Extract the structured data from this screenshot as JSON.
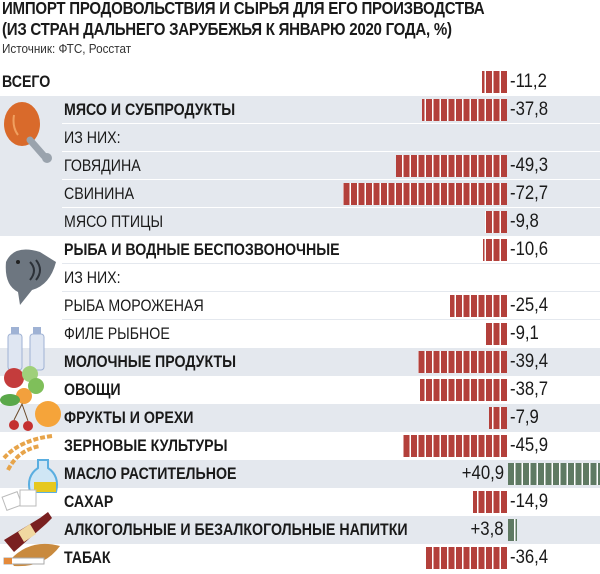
{
  "title_line1": "ИМПОРТ ПРОДОВОЛЬСТВИЯ И СЫРЬЯ ДЛЯ ЕГО ПРОИЗВОДСТВА",
  "title_line2": "(ИЗ СТРАН ДАЛЬНЕГО ЗАРУБЕЖЬЯ К ЯНВАРЮ 2020 ГОДА, %)",
  "source": "Источник: ФТС, Росстат",
  "colors": {
    "negative": "#b3403b",
    "positive": "#5f7a63",
    "band": "#e4e8ee"
  },
  "chart_data": {
    "type": "bar",
    "orientation": "horizontal",
    "title": "ИМПОРТ ПРОДОВОЛЬСТВИЯ И СЫРЬЯ ДЛЯ ЕГО ПРОИЗВОДСТВА (ИЗ СТРАН ДАЛЬНЕГО ЗАРУБЕЖЬЯ К ЯНВАРЮ 2020 ГОДА, %)",
    "grid": false,
    "rows": [
      {
        "label": "ВСЕГО",
        "value": -11.2,
        "text": "-11,2",
        "style": "total"
      },
      {
        "label": "МЯСО И СУБПРОДУКТЫ",
        "value": -37.8,
        "text": "-37,8",
        "style": "main",
        "icon": "chicken-leg-icon"
      },
      {
        "label": "ИЗ НИХ:",
        "value": null,
        "text": "",
        "style": "sub"
      },
      {
        "label": "ГОВЯДИНА",
        "value": -49.3,
        "text": "-49,3",
        "style": "sub"
      },
      {
        "label": "СВИНИНА",
        "value": -72.7,
        "text": "-72,7",
        "style": "sub"
      },
      {
        "label": "МЯСО ПТИЦЫ",
        "value": -9.8,
        "text": "-9,8",
        "style": "sub"
      },
      {
        "label": "РЫБА И ВОДНЫЕ БЕСПОЗВОНОЧНЫЕ",
        "value": -10.6,
        "text": "-10,6",
        "style": "main",
        "icon": "fish-icon"
      },
      {
        "label": "ИЗ НИХ:",
        "value": null,
        "text": "",
        "style": "sub"
      },
      {
        "label": "РЫБА МОРОЖЕНАЯ",
        "value": -25.4,
        "text": "-25,4",
        "style": "sub"
      },
      {
        "label": "ФИЛЕ РЫБНОЕ",
        "value": -9.1,
        "text": "-9,1",
        "style": "sub"
      },
      {
        "label": "МОЛОЧНЫЕ ПРОДУКТЫ",
        "value": -39.4,
        "text": "-39,4",
        "style": "main",
        "icon": "milk-bottles-icon"
      },
      {
        "label": "ОВОЩИ",
        "value": -38.7,
        "text": "-38,7",
        "style": "main",
        "icon": "vegetables-icon"
      },
      {
        "label": "ФРУКТЫ И ОРЕХИ",
        "value": -7.9,
        "text": "-7,9",
        "style": "main",
        "icon": "fruit-icon"
      },
      {
        "label": "ЗЕРНОВЫЕ КУЛЬТУРЫ",
        "value": -45.9,
        "text": "-45,9",
        "style": "main",
        "icon": "wheat-icon"
      },
      {
        "label": "МАСЛО РАСТИТЕЛЬНОЕ",
        "value": 40.9,
        "text": "+40,9",
        "style": "main",
        "icon": "oil-jug-icon"
      },
      {
        "label": "САХАР",
        "value": -14.9,
        "text": "-14,9",
        "style": "main",
        "icon": "sugar-cubes-icon"
      },
      {
        "label": "АЛКОГОЛЬНЫЕ И БЕЗАЛКОГОЛЬНЫЕ НАПИТКИ",
        "value": 3.8,
        "text": "+3,8",
        "style": "main",
        "icon": "bottle-icon"
      },
      {
        "label": "ТАБАК",
        "value": -36.4,
        "text": "-36,4",
        "style": "main",
        "icon": "tobacco-icon"
      }
    ]
  }
}
